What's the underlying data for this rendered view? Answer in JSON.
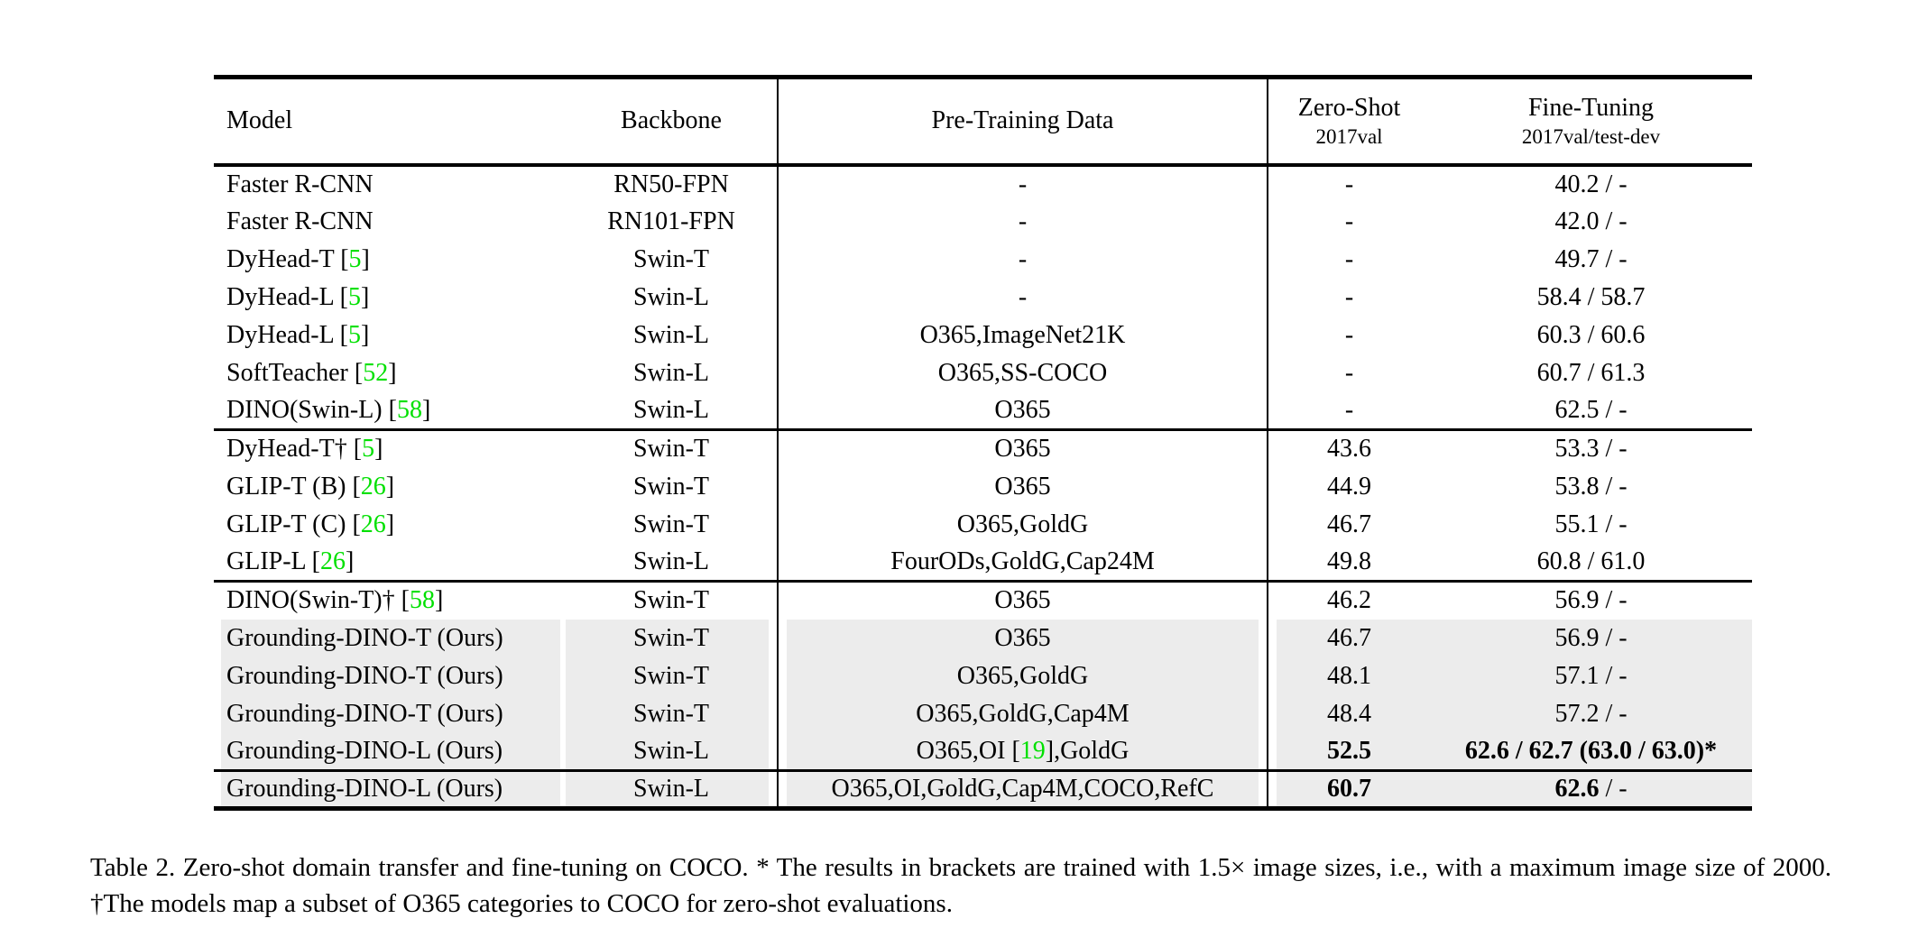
{
  "colors": {
    "citation_green": "#00e000",
    "row_highlight": "#ececec",
    "text": "#000000",
    "background": "#ffffff"
  },
  "table": {
    "header": {
      "model": "Model",
      "backbone": "Backbone",
      "pretrain": "Pre-Training Data",
      "zeroshot_title": "Zero-Shot",
      "zeroshot_sub": "2017val",
      "finetune_title": "Fine-Tuning",
      "finetune_sub": "2017val/test-dev"
    },
    "groups": [
      {
        "rows": [
          {
            "model_pre": "Faster R-CNN",
            "model_ref": "",
            "model_post": "",
            "backbone": "RN50-FPN",
            "pt_pre": "-",
            "pt_ref": "",
            "pt_post": "",
            "zs": "-",
            "zs_bold": false,
            "ft_bold": "",
            "ft_norm": "40.2 / -",
            "hl": false
          },
          {
            "model_pre": "Faster R-CNN",
            "model_ref": "",
            "model_post": "",
            "backbone": "RN101-FPN",
            "pt_pre": "-",
            "pt_ref": "",
            "pt_post": "",
            "zs": "-",
            "zs_bold": false,
            "ft_bold": "",
            "ft_norm": "42.0 / -",
            "hl": false
          },
          {
            "model_pre": "DyHead-T [",
            "model_ref": "5",
            "model_post": "]",
            "backbone": "Swin-T",
            "pt_pre": "-",
            "pt_ref": "",
            "pt_post": "",
            "zs": "-",
            "zs_bold": false,
            "ft_bold": "",
            "ft_norm": "49.7 / -",
            "hl": false
          },
          {
            "model_pre": "DyHead-L [",
            "model_ref": "5",
            "model_post": "]",
            "backbone": "Swin-L",
            "pt_pre": "-",
            "pt_ref": "",
            "pt_post": "",
            "zs": "-",
            "zs_bold": false,
            "ft_bold": "",
            "ft_norm": "58.4 / 58.7",
            "hl": false
          },
          {
            "model_pre": "DyHead-L [",
            "model_ref": "5",
            "model_post": "]",
            "backbone": "Swin-L",
            "pt_pre": "O365,ImageNet21K",
            "pt_ref": "",
            "pt_post": "",
            "zs": "-",
            "zs_bold": false,
            "ft_bold": "",
            "ft_norm": "60.3 / 60.6",
            "hl": false
          },
          {
            "model_pre": "SoftTeacher [",
            "model_ref": "52",
            "model_post": "]",
            "backbone": "Swin-L",
            "pt_pre": "O365,SS-COCO",
            "pt_ref": "",
            "pt_post": "",
            "zs": "-",
            "zs_bold": false,
            "ft_bold": "",
            "ft_norm": "60.7 / 61.3",
            "hl": false
          },
          {
            "model_pre": "DINO(Swin-L) [",
            "model_ref": "58",
            "model_post": "]",
            "backbone": "Swin-L",
            "pt_pre": "O365",
            "pt_ref": "",
            "pt_post": "",
            "zs": "-",
            "zs_bold": false,
            "ft_bold": "",
            "ft_norm": "62.5 / -",
            "hl": false
          }
        ]
      },
      {
        "rows": [
          {
            "model_pre": "DyHead-T† [",
            "model_ref": "5",
            "model_post": "]",
            "backbone": "Swin-T",
            "pt_pre": "O365",
            "pt_ref": "",
            "pt_post": "",
            "zs": "43.6",
            "zs_bold": false,
            "ft_bold": "",
            "ft_norm": "53.3 / -",
            "hl": false
          },
          {
            "model_pre": "GLIP-T (B) [",
            "model_ref": "26",
            "model_post": "]",
            "backbone": "Swin-T",
            "pt_pre": "O365",
            "pt_ref": "",
            "pt_post": "",
            "zs": "44.9",
            "zs_bold": false,
            "ft_bold": "",
            "ft_norm": "53.8 / -",
            "hl": false
          },
          {
            "model_pre": "GLIP-T (C) [",
            "model_ref": "26",
            "model_post": "]",
            "backbone": "Swin-T",
            "pt_pre": "O365,GoldG",
            "pt_ref": "",
            "pt_post": "",
            "zs": "46.7",
            "zs_bold": false,
            "ft_bold": "",
            "ft_norm": "55.1 / -",
            "hl": false
          },
          {
            "model_pre": "GLIP-L [",
            "model_ref": "26",
            "model_post": "]",
            "backbone": "Swin-L",
            "pt_pre": "FourODs,GoldG,Cap24M",
            "pt_ref": "",
            "pt_post": "",
            "zs": "49.8",
            "zs_bold": false,
            "ft_bold": "",
            "ft_norm": "60.8 / 61.0",
            "hl": false
          }
        ]
      },
      {
        "rows": [
          {
            "model_pre": "DINO(Swin-T)† [",
            "model_ref": "58",
            "model_post": "]",
            "backbone": "Swin-T",
            "pt_pre": "O365",
            "pt_ref": "",
            "pt_post": "",
            "zs": "46.2",
            "zs_bold": false,
            "ft_bold": "",
            "ft_norm": "56.9 / -",
            "hl": false
          },
          {
            "model_pre": "Grounding-DINO-T (Ours)",
            "model_ref": "",
            "model_post": "",
            "backbone": "Swin-T",
            "pt_pre": "O365",
            "pt_ref": "",
            "pt_post": "",
            "zs": "46.7",
            "zs_bold": false,
            "ft_bold": "",
            "ft_norm": "56.9 / -",
            "hl": true
          },
          {
            "model_pre": "Grounding-DINO-T (Ours)",
            "model_ref": "",
            "model_post": "",
            "backbone": "Swin-T",
            "pt_pre": "O365,GoldG",
            "pt_ref": "",
            "pt_post": "",
            "zs": "48.1",
            "zs_bold": false,
            "ft_bold": "",
            "ft_norm": "57.1 / -",
            "hl": true
          },
          {
            "model_pre": "Grounding-DINO-T (Ours)",
            "model_ref": "",
            "model_post": "",
            "backbone": "Swin-T",
            "pt_pre": "O365,GoldG,Cap4M",
            "pt_ref": "",
            "pt_post": "",
            "zs": "48.4",
            "zs_bold": false,
            "ft_bold": "",
            "ft_norm": "57.2 / -",
            "hl": true
          },
          {
            "model_pre": "Grounding-DINO-L (Ours)",
            "model_ref": "",
            "model_post": "",
            "backbone": "Swin-L",
            "pt_pre": "O365,OI [",
            "pt_ref": "19",
            "pt_post": "],GoldG",
            "zs": "52.5",
            "zs_bold": true,
            "ft_bold": "62.6 / 62.7 (63.0 / 63.0)*",
            "ft_norm": "",
            "hl": true
          }
        ]
      },
      {
        "rows": [
          {
            "model_pre": "Grounding-DINO-L (Ours)",
            "model_ref": "",
            "model_post": "",
            "backbone": "Swin-L",
            "pt_pre": "O365,OI,GoldG,Cap4M,COCO,RefC",
            "pt_ref": "",
            "pt_post": "",
            "zs": "60.7",
            "zs_bold": true,
            "ft_bold": "62.6",
            "ft_norm": " / -",
            "hl": true
          }
        ]
      }
    ]
  },
  "caption": {
    "text": "Table 2.  Zero-shot domain transfer and fine-tuning on COCO. * The results in brackets are trained with 1.5× image sizes, i.e., with a maximum image size of 2000. †The models map a subset of O365 categories to COCO for zero-shot evaluations."
  }
}
